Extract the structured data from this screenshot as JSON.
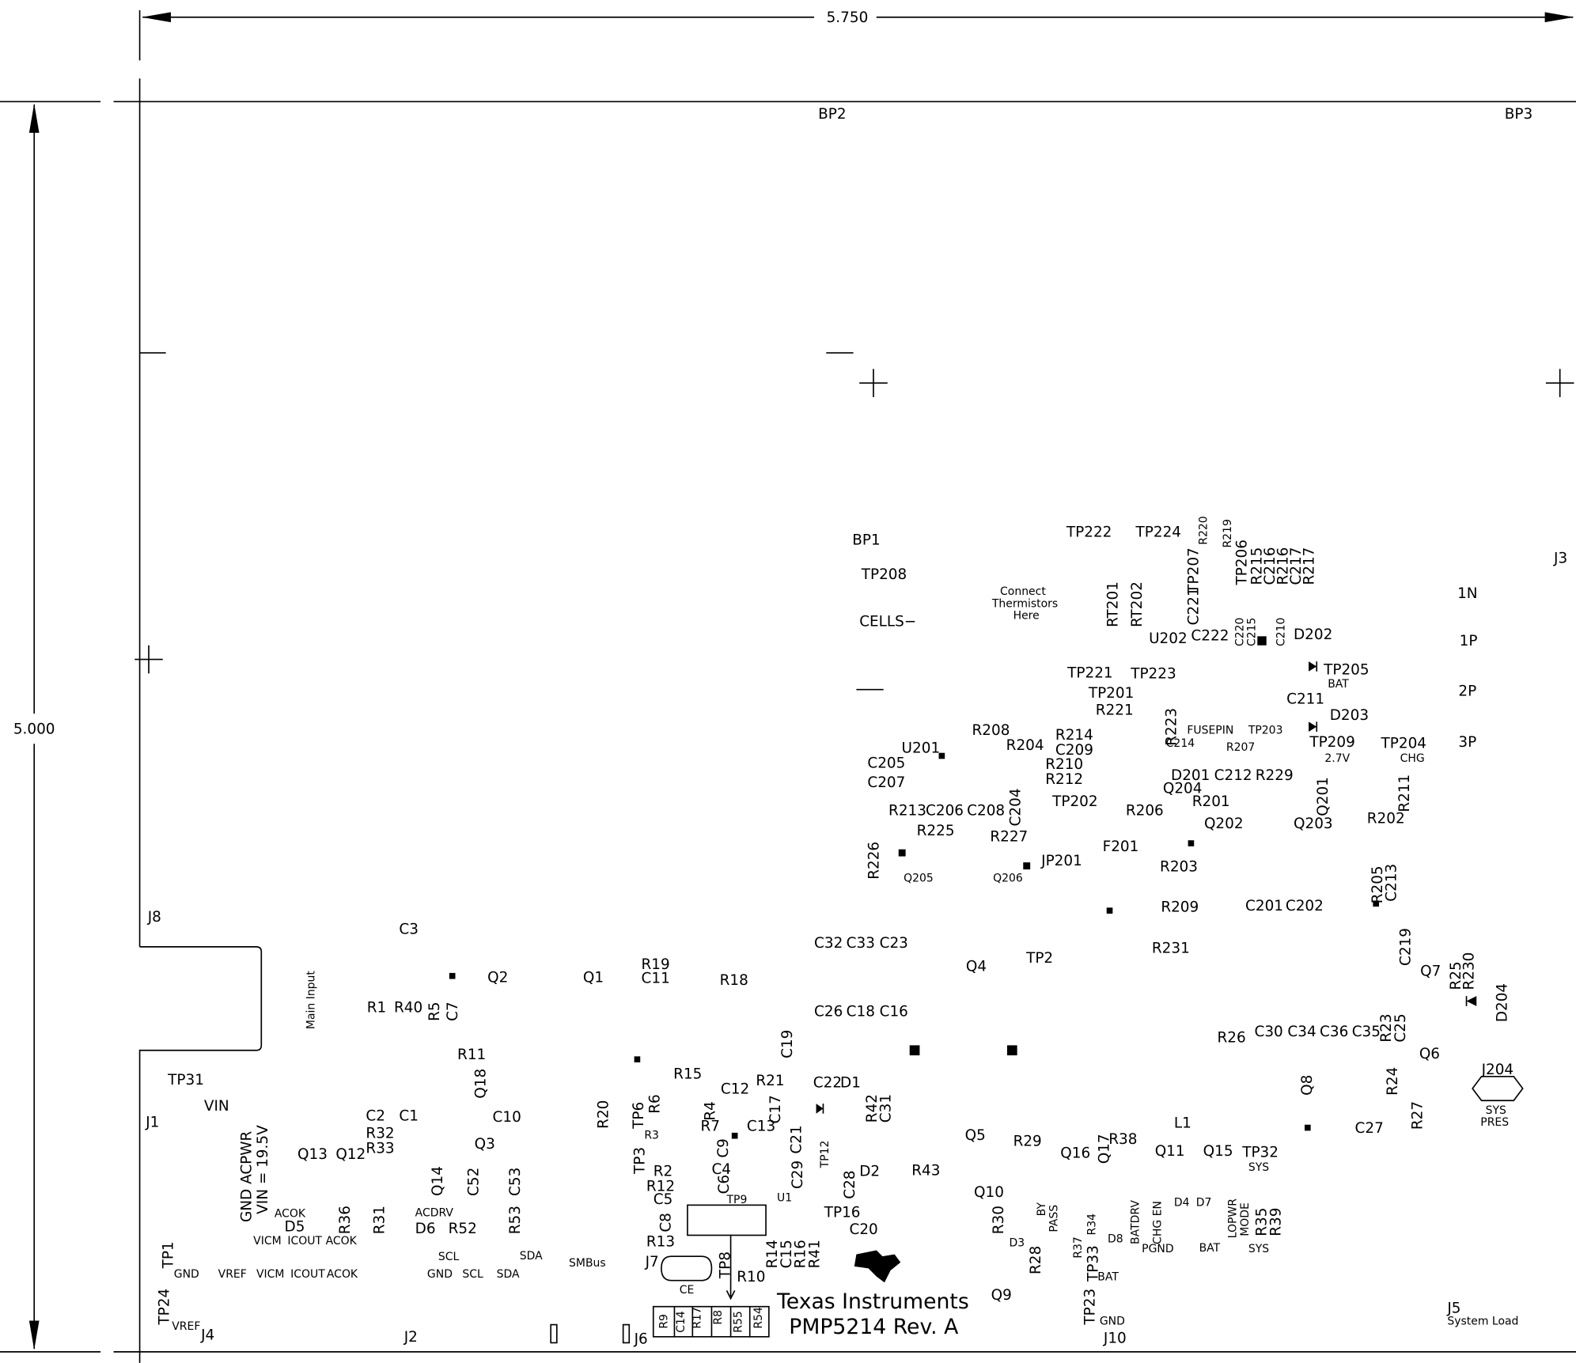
{
  "dimensions": {
    "width": "5.750",
    "height": "5.000"
  },
  "labels": [
    "BP2",
    "BP3",
    "J3",
    "BP1",
    "TP208",
    "CELLS−",
    "Connect",
    "Thermistors",
    "Here",
    "TP222",
    "TP224",
    "R220",
    "R219",
    "TP207",
    "C221",
    "RT201",
    "RT202",
    "TP206",
    "R215",
    "C216",
    "R216",
    "C217",
    "R217",
    "1N",
    "1P",
    "2P",
    "3P",
    "U202",
    "C222",
    "C220",
    "C215",
    "C210",
    "D202",
    "TP205",
    "BAT",
    "TP221",
    "TP223",
    "TP201",
    "R221",
    "C211",
    "D203",
    "R223",
    "FUSEPIN",
    "TP203",
    "C214",
    "R207",
    "TP209",
    "2.7V",
    "TP204",
    "CHG",
    "R208",
    "U201",
    "R214",
    "R204",
    "C209",
    "C205",
    "R210",
    "D201",
    "C212",
    "R229",
    "C207",
    "R212",
    "Q204",
    "Q201",
    "R211",
    "R201",
    "TP202",
    "R213",
    "C206",
    "C208",
    "C204",
    "R206",
    "R202",
    "Q202",
    "Q203",
    "R225",
    "R227",
    "F201",
    "R226",
    "Q205",
    "Q206",
    "JP201",
    "R203",
    "R205",
    "C213",
    "R209",
    "C201",
    "C202",
    "J8",
    "C3",
    "C32",
    "C33",
    "C23",
    "C219",
    "Q4",
    "TP2",
    "R231",
    "Q7",
    "R25",
    "R230",
    "D204",
    "Main Input",
    "Q2",
    "Q1",
    "R19",
    "C11",
    "R18",
    "R1",
    "R40",
    "R5",
    "C7",
    "C26",
    "C18",
    "C16",
    "R23",
    "C25",
    "R26",
    "C30",
    "C34",
    "C36",
    "C35",
    "C19",
    "R11",
    "Q6",
    "J204",
    "TP31",
    "R15",
    "R21",
    "C22",
    "D1",
    "Q18",
    "C12",
    "Q8",
    "R24",
    "VIN",
    "R42",
    "C31",
    "R4",
    "R7",
    "C17",
    "R20",
    "TP6",
    "R6",
    "J1",
    "C2",
    "C1",
    "C10",
    "C13",
    "SYS",
    "PRES",
    "R27",
    "C27",
    "L1",
    "R3",
    "C9",
    "C21",
    "R32",
    "GND ACPWR",
    "VIN = 19.5V",
    "Q5",
    "R29",
    "R38",
    "Q17",
    "TP12",
    "R33",
    "Q13",
    "Q12",
    "Q3",
    "Q16",
    "Q11",
    "Q15",
    "TP32",
    "SYS",
    "C6",
    "C4",
    "TP3",
    "C29",
    "Q14",
    "C52",
    "C53",
    "R2",
    "D2",
    "R43",
    "C28",
    "U1",
    "R12",
    "Q10",
    "C5",
    "ACOK",
    "ACDRV",
    "BY",
    "PASS",
    "BATDRV",
    "CHG EN",
    "D4",
    "D7",
    "LOPWR",
    "MODE",
    "R35",
    "R39",
    "TP9",
    "TP16",
    "R36",
    "R31",
    "R30",
    "R34",
    "R53",
    "D5",
    "D6",
    "R52",
    "C8",
    "C20",
    "VICM",
    "ICOUT",
    "ACOK",
    "D3",
    "D8",
    "R37",
    "PGND",
    "BAT",
    "SYS",
    "R13",
    "R14",
    "C15",
    "R16",
    "R41",
    "SCL",
    "SDA",
    "TP1",
    "R28",
    "TP33",
    "J7",
    "SMBus",
    "TP8",
    "GND",
    "VREF",
    "VICM",
    "ICOUT",
    "ACOK",
    "GND",
    "SCL",
    "SDA",
    "BAT",
    "R10",
    "CE",
    "Texas Instruments",
    "Q9",
    "TP23",
    "J5",
    "System Load",
    "TP24",
    "VREF",
    "J4",
    "J2",
    "J6",
    "PMP5214 Rev. A",
    "GND",
    "J10",
    "R9",
    "C14",
    "R17",
    "R8",
    "R55",
    "R54"
  ]
}
